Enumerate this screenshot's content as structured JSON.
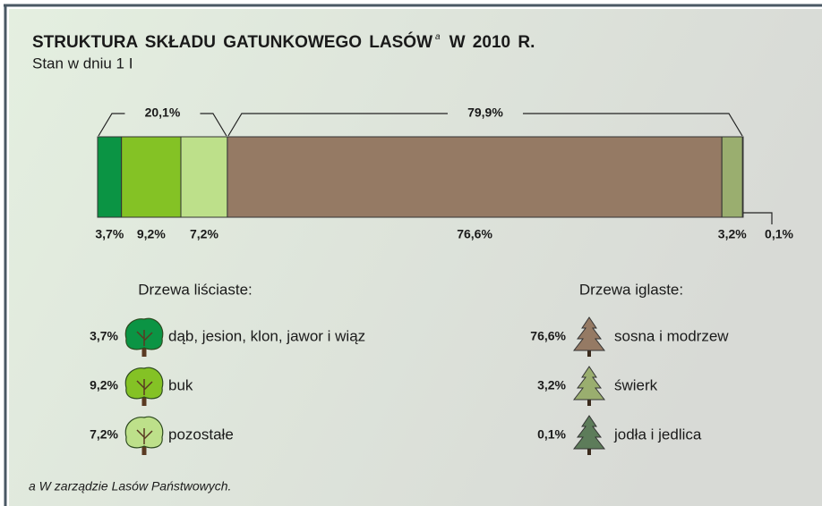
{
  "chart_data": {
    "type": "stacked-bar",
    "title": "STRUKTURA SKŁADU GATUNKOWEGO LASÓW",
    "title_note": "a",
    "title_suffix": "W 2010 R.",
    "subtitle": "Stan w dniu 1 I",
    "footnote": "a W zarządzie Lasów Państwowych.",
    "xlim": [
      0,
      100
    ],
    "groups": [
      {
        "name": "Drzewa liściaste:",
        "value": 20.1,
        "value_label": "20,1%",
        "icon": "deciduous",
        "series": [
          {
            "name": "dąb, jesion, klon, jawor i wiąz",
            "color": "#0b9444",
            "values": [
              3.7
            ],
            "value_labels": [
              "3,7%"
            ]
          },
          {
            "name": "buk",
            "color": "#84c225",
            "values": [
              9.2
            ],
            "value_labels": [
              "9,2%"
            ]
          },
          {
            "name": "pozostałe",
            "color": "#bde08a",
            "values": [
              7.2
            ],
            "value_labels": [
              "7,2%"
            ]
          }
        ]
      },
      {
        "name": "Drzewa iglaste:",
        "value": 79.9,
        "value_label": "79,9%",
        "icon": "conifer",
        "series": [
          {
            "name": "sosna i modrzew",
            "color": "#957a64",
            "values": [
              76.6
            ],
            "value_labels": [
              "76,6%"
            ]
          },
          {
            "name": "świerk",
            "color": "#9aae6f",
            "values": [
              3.2
            ],
            "value_labels": [
              "3,2%"
            ]
          },
          {
            "name": "jodła i jedlica",
            "color": "#5d7c5a",
            "values": [
              0.1
            ],
            "value_labels": [
              "0,1%"
            ]
          }
        ]
      }
    ]
  }
}
